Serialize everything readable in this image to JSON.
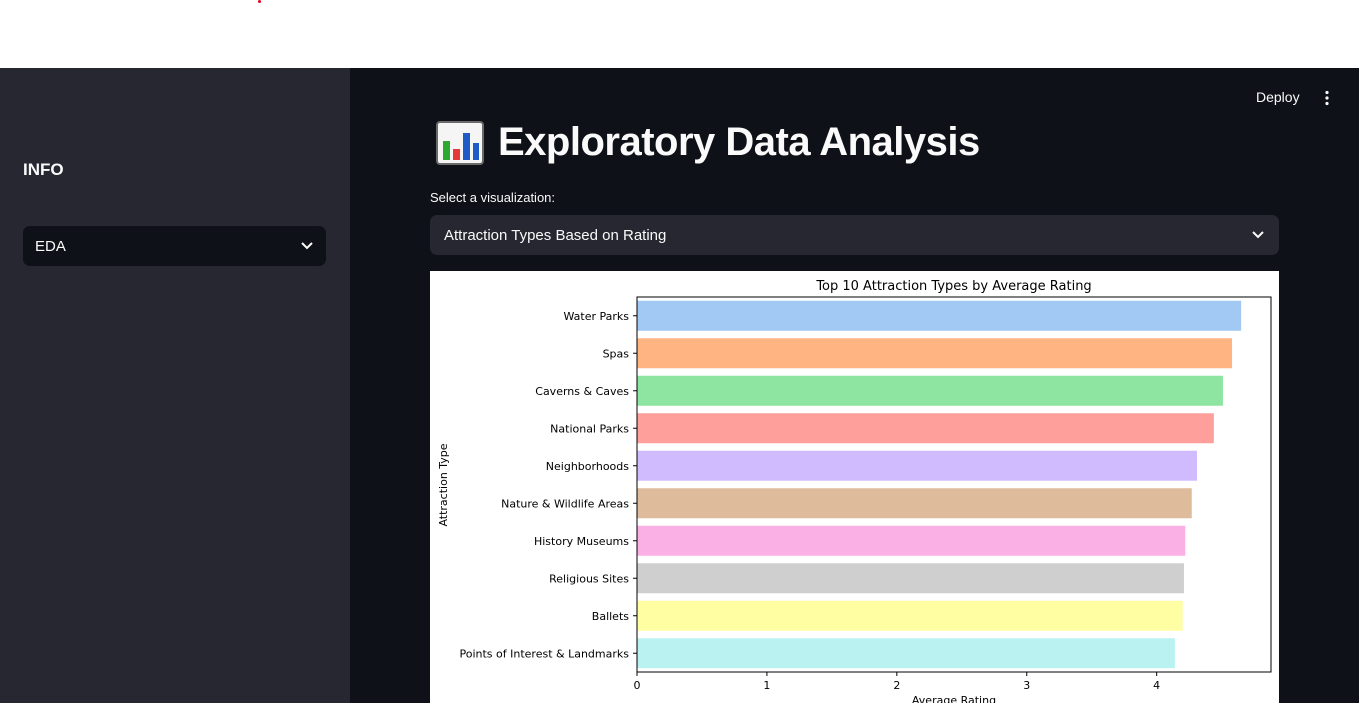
{
  "sidebar": {
    "title": "INFO",
    "select_value": "EDA"
  },
  "header": {
    "deploy_label": "Deploy"
  },
  "main": {
    "title": "Exploratory Data Analysis",
    "title_icon": "bar-chart-emoji-icon",
    "select_label": "Select a visualization:",
    "select_value": "Attraction Types Based on Rating"
  },
  "chart_data": {
    "type": "bar",
    "orientation": "horizontal",
    "title": "Top 10 Attraction Types by Average Rating",
    "xlabel": "Average Rating",
    "ylabel": "Attraction Type",
    "xlim": [
      0,
      4.88
    ],
    "xticks": [
      0,
      1,
      2,
      3,
      4
    ],
    "categories": [
      "Water Parks",
      "Spas",
      "Caverns & Caves",
      "National Parks",
      "Neighborhoods",
      "Nature & Wildlife Areas",
      "History Museums",
      "Religious Sites",
      "Ballets",
      "Points of Interest & Landmarks"
    ],
    "values": [
      4.65,
      4.58,
      4.51,
      4.44,
      4.31,
      4.27,
      4.22,
      4.21,
      4.2,
      4.14
    ],
    "colors": [
      "#a1c9f4",
      "#ffb482",
      "#8de5a1",
      "#ff9f9b",
      "#d0bbff",
      "#debb9b",
      "#fab0e4",
      "#cfcfcf",
      "#fffea3",
      "#b9f2f0"
    ],
    "grid": false,
    "legend": "none"
  }
}
